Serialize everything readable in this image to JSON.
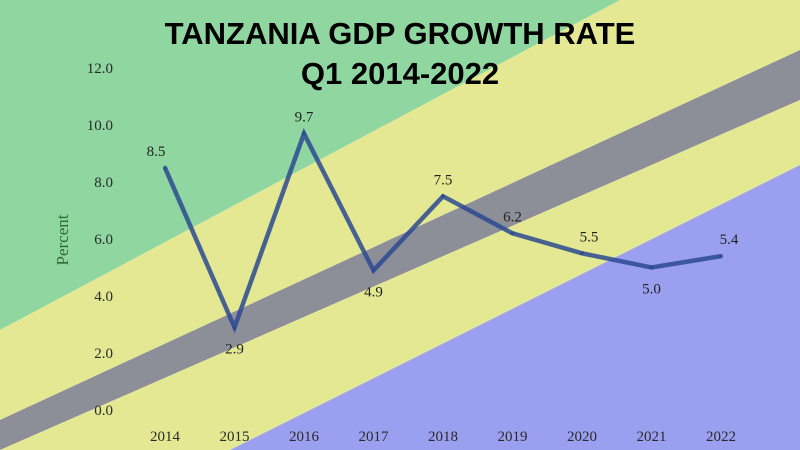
{
  "colors": {
    "flag_green": "#8fd6a0",
    "flag_yellow": "#e4e892",
    "flag_black": "#8c8f98",
    "flag_blue": "#9aa0ef",
    "line": "#2c4a90"
  },
  "chart_data": {
    "type": "line",
    "title_lines": [
      "TANZANIA GDP GROWTH RATE",
      "Q1 2014-2022"
    ],
    "ylabel": "Percent",
    "xlabel": "",
    "categories": [
      "2014",
      "2015",
      "2016",
      "2017",
      "2018",
      "2019",
      "2020",
      "2021",
      "2022"
    ],
    "values": [
      8.5,
      2.9,
      9.7,
      4.9,
      7.5,
      6.2,
      5.5,
      5.0,
      5.4
    ],
    "value_labels": [
      "8.5",
      "2.9",
      "9.7",
      "4.9",
      "7.5",
      "6.2",
      "5.5",
      "5.0",
      "5.4"
    ],
    "ylim": [
      0,
      12
    ],
    "yticks": [
      0,
      2,
      4,
      6,
      8,
      10,
      12
    ],
    "ytick_labels": [
      "0.0",
      "2.0",
      "4.0",
      "6.0",
      "8.0",
      "10.0",
      "12.0"
    ],
    "grid": false,
    "legend": "none"
  }
}
